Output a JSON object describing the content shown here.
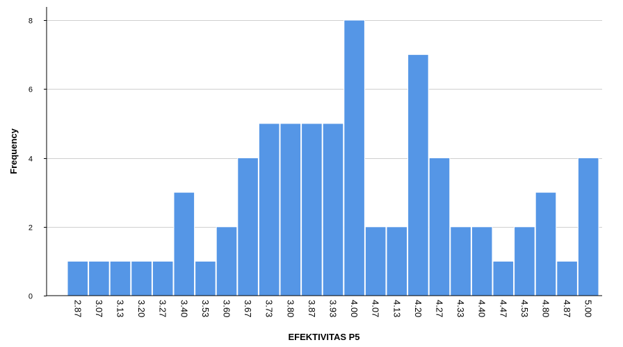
{
  "chart_data": {
    "type": "bar",
    "title": "",
    "xlabel": "EFEKTIVITAS P5",
    "ylabel": "Frequency",
    "categories": [
      "2.87",
      "3.07",
      "3.13",
      "3.20",
      "3.27",
      "3.40",
      "3.53",
      "3.60",
      "3.67",
      "3.73",
      "3.80",
      "3.87",
      "3.93",
      "4.00",
      "4.07",
      "4.13",
      "4.20",
      "4.27",
      "4.33",
      "4.40",
      "4.47",
      "4.53",
      "4.80",
      "4.87",
      "5.00"
    ],
    "values": [
      1,
      1,
      1,
      1,
      1,
      3,
      1,
      2,
      4,
      5,
      5,
      5,
      5,
      8,
      2,
      2,
      7,
      4,
      2,
      2,
      1,
      2,
      3,
      1,
      4
    ],
    "ylim": [
      0,
      8
    ],
    "yticks": [
      0,
      2,
      4,
      6,
      8
    ],
    "grid": true,
    "bar_color": "#5596e6",
    "x_tick_rotation": "rotated 90 degrees clockwise"
  }
}
